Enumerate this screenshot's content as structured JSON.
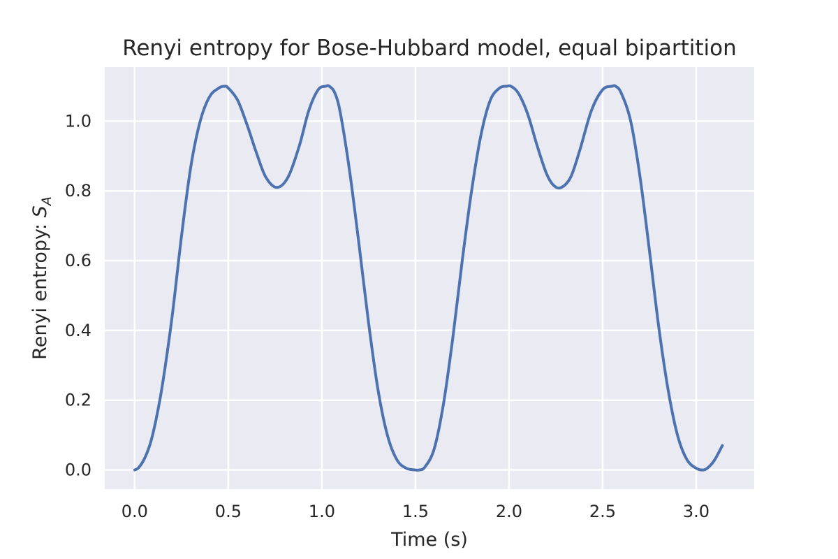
{
  "chart_data": {
    "type": "line",
    "title": "Renyi entropy for Bose-Hubbard model, equal bipartition",
    "xlabel": "Time (s)",
    "ylabel": "Renyi entropy: ",
    "ylabel_symbol": "S",
    "ylabel_subscript": "A",
    "xlim": [
      -0.16,
      3.31
    ],
    "ylim": [
      -0.055,
      1.155
    ],
    "xticks": [
      0.0,
      0.5,
      1.0,
      1.5,
      2.0,
      2.5,
      3.0
    ],
    "xtick_labels": [
      "0.0",
      "0.5",
      "1.0",
      "1.5",
      "2.0",
      "2.5",
      "3.0"
    ],
    "yticks": [
      0.0,
      0.2,
      0.4,
      0.6,
      0.8,
      1.0
    ],
    "ytick_labels": [
      "0.0",
      "0.2",
      "0.4",
      "0.6",
      "0.8",
      "1.0"
    ],
    "grid": true,
    "background_color": "#eaeaf2",
    "grid_color": "#ffffff",
    "series": [
      {
        "color": "#4c72b0",
        "x": [
          0.0,
          0.02,
          0.05,
          0.08,
          0.1,
          0.12,
          0.15,
          0.2,
          0.25,
          0.3,
          0.35,
          0.4,
          0.45,
          0.48,
          0.5,
          0.55,
          0.6,
          0.65,
          0.7,
          0.76,
          0.82,
          0.88,
          0.93,
          0.98,
          1.02,
          1.04,
          1.07,
          1.1,
          1.15,
          1.2,
          1.25,
          1.3,
          1.35,
          1.4,
          1.45,
          1.5,
          1.52,
          1.55,
          1.6,
          1.65,
          1.7,
          1.75,
          1.8,
          1.85,
          1.9,
          1.95,
          1.99,
          2.01,
          2.05,
          2.1,
          2.15,
          2.2,
          2.24,
          2.28,
          2.33,
          2.38,
          2.44,
          2.5,
          2.55,
          2.57,
          2.6,
          2.65,
          2.7,
          2.75,
          2.8,
          2.85,
          2.9,
          2.95,
          3.0,
          3.04,
          3.07,
          3.1,
          3.14
        ],
        "y": [
          0.0,
          0.006,
          0.03,
          0.07,
          0.11,
          0.16,
          0.25,
          0.44,
          0.67,
          0.87,
          1.0,
          1.07,
          1.095,
          1.1,
          1.095,
          1.06,
          0.99,
          0.91,
          0.84,
          0.81,
          0.84,
          0.93,
          1.03,
          1.09,
          1.1,
          1.1,
          1.08,
          1.02,
          0.85,
          0.64,
          0.42,
          0.23,
          0.1,
          0.03,
          0.005,
          0.0,
          0.0,
          0.008,
          0.06,
          0.19,
          0.38,
          0.6,
          0.8,
          0.96,
          1.06,
          1.095,
          1.1,
          1.1,
          1.08,
          1.02,
          0.93,
          0.85,
          0.815,
          0.81,
          0.84,
          0.92,
          1.03,
          1.09,
          1.1,
          1.1,
          1.08,
          1.0,
          0.84,
          0.63,
          0.41,
          0.23,
          0.1,
          0.03,
          0.005,
          0.0,
          0.01,
          0.03,
          0.07
        ]
      }
    ]
  }
}
